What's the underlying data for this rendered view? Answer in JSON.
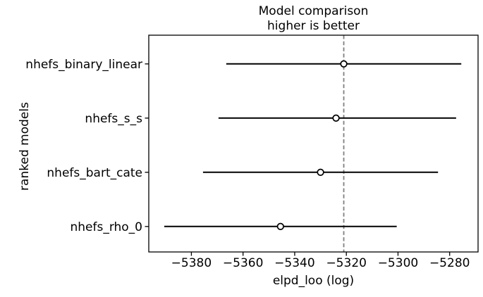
{
  "chart_data": {
    "type": "scatter",
    "variant": "forest-model-comparison",
    "title": "Model comparison",
    "subtitle": "higher is better",
    "xlabel": "elpd_loo (log)",
    "ylabel": "ranked models",
    "categories": [
      "nhefs_binary_linear",
      "nhefs_s_s",
      "nhefs_bart_cate",
      "nhefs_rho_0"
    ],
    "series": [
      {
        "name": "elpd_loo",
        "values": [
          -5321,
          -5324,
          -5330,
          -5345.5
        ],
        "error_low": [
          -5366.5,
          -5369.5,
          -5375.5,
          -5390.5
        ],
        "error_high": [
          -5275.5,
          -5277.5,
          -5284.5,
          -5300.5
        ]
      }
    ],
    "xticks": [
      -5380,
      -5360,
      -5340,
      -5320,
      -5300,
      -5280
    ],
    "xlim": [
      -5396.5,
      -5269
    ],
    "reference_line_x": -5321,
    "grid": false,
    "legend": false,
    "marker": "open-circle",
    "colors": {
      "errorbar": "#000000",
      "marker_fill": "#ffffff",
      "marker_edge": "#000000",
      "reference_line": "#808080",
      "spine": "#000000",
      "background": "#ffffff",
      "text": "#000000"
    }
  }
}
